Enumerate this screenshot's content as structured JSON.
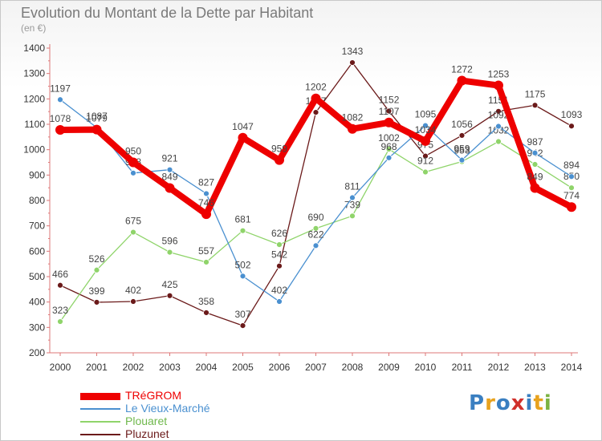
{
  "title": "Evolution du Montant de la Dette par Habitant",
  "unit_label": "(en €)",
  "logo": {
    "letters": [
      "P",
      "r",
      "o",
      "x",
      "i",
      "t",
      "i"
    ],
    "colors": [
      "#3a7fc1",
      "#e8a21d",
      "#3a7fc1",
      "#d0302b",
      "#3a7fc1",
      "#e8a21d",
      "#7cb342"
    ]
  },
  "chart_data": {
    "type": "line",
    "x": [
      "2000",
      "2001",
      "2002",
      "2003",
      "2004",
      "2005",
      "2006",
      "2007",
      "2008",
      "2009",
      "2010",
      "2011",
      "2012",
      "2013",
      "2014"
    ],
    "ylim": [
      200,
      1400
    ],
    "yticks": [
      200,
      300,
      400,
      500,
      600,
      700,
      800,
      900,
      1000,
      1100,
      1200,
      1300,
      1400
    ],
    "grid": false,
    "legend_position": "bottom-left",
    "series": [
      {
        "name": "TRéGROM",
        "color": "#ee0000",
        "values": [
          1078,
          1079,
          950,
          849,
          746,
          1047,
          959,
          1202,
          1082,
          1107,
          1034,
          1272,
          1253,
          849,
          774
        ]
      },
      {
        "name": "Le Vieux-Marché",
        "color": "#4a90d0",
        "values": [
          1197,
          1087,
          908,
          921,
          827,
          502,
          402,
          622,
          811,
          968,
          1095,
          959,
          1092,
          987,
          894
        ]
      },
      {
        "name": "Plouaret",
        "color": "#8fd46a",
        "values": [
          323,
          526,
          675,
          596,
          557,
          681,
          626,
          690,
          739,
          1002,
          912,
          953,
          1032,
          942,
          850
        ]
      },
      {
        "name": "Pluzunet",
        "color": "#6b1a1a",
        "values": [
          466,
          399,
          402,
          425,
          358,
          307,
          542,
          1147,
          1343,
          1152,
          975,
          1056,
          1151,
          1175,
          1093
        ]
      }
    ]
  }
}
